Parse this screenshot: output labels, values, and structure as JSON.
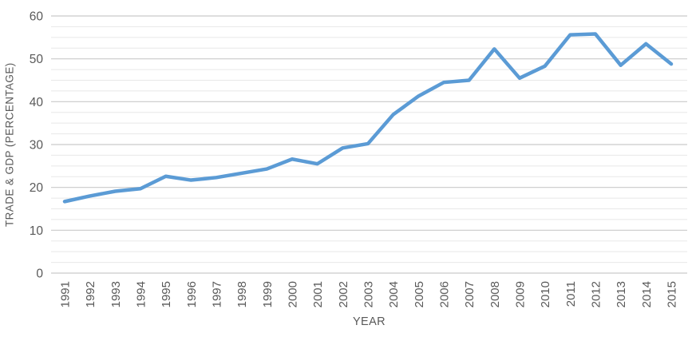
{
  "chart_data": {
    "type": "line",
    "title": "",
    "xlabel": "YEAR",
    "ylabel": "TRADE & GDP (PERCENTAGE)",
    "categories": [
      1991,
      1992,
      1993,
      1994,
      1995,
      1996,
      1997,
      1998,
      1999,
      2000,
      2001,
      2002,
      2003,
      2004,
      2005,
      2006,
      2007,
      2008,
      2009,
      2010,
      2011,
      2012,
      2013,
      2014,
      2015
    ],
    "series": [
      {
        "name": "Trade & GDP",
        "values": [
          16.7,
          18.0,
          19.1,
          19.7,
          22.6,
          21.7,
          22.3,
          23.3,
          24.3,
          26.6,
          25.5,
          29.2,
          30.2,
          37.0,
          41.3,
          44.5,
          45.0,
          52.3,
          45.5,
          48.3,
          55.6,
          55.8,
          48.5,
          53.5,
          48.8
        ]
      }
    ],
    "ylim": [
      0,
      60
    ],
    "y_major_step": 10,
    "y_minor_step": 2.5,
    "y_tick_labels": [
      "0",
      "10",
      "20",
      "30",
      "40",
      "50",
      "60"
    ],
    "grid": "on",
    "legend": "none",
    "x_tick_rotation_degrees": 90,
    "colors": {
      "line": "#5B9BD5",
      "major_gridline": "#C9C9C9",
      "minor_gridline": "#E8E8E8",
      "tick_label_text": "#595959",
      "axis_title_text": "#595959",
      "background": "#FFFFFF"
    }
  }
}
